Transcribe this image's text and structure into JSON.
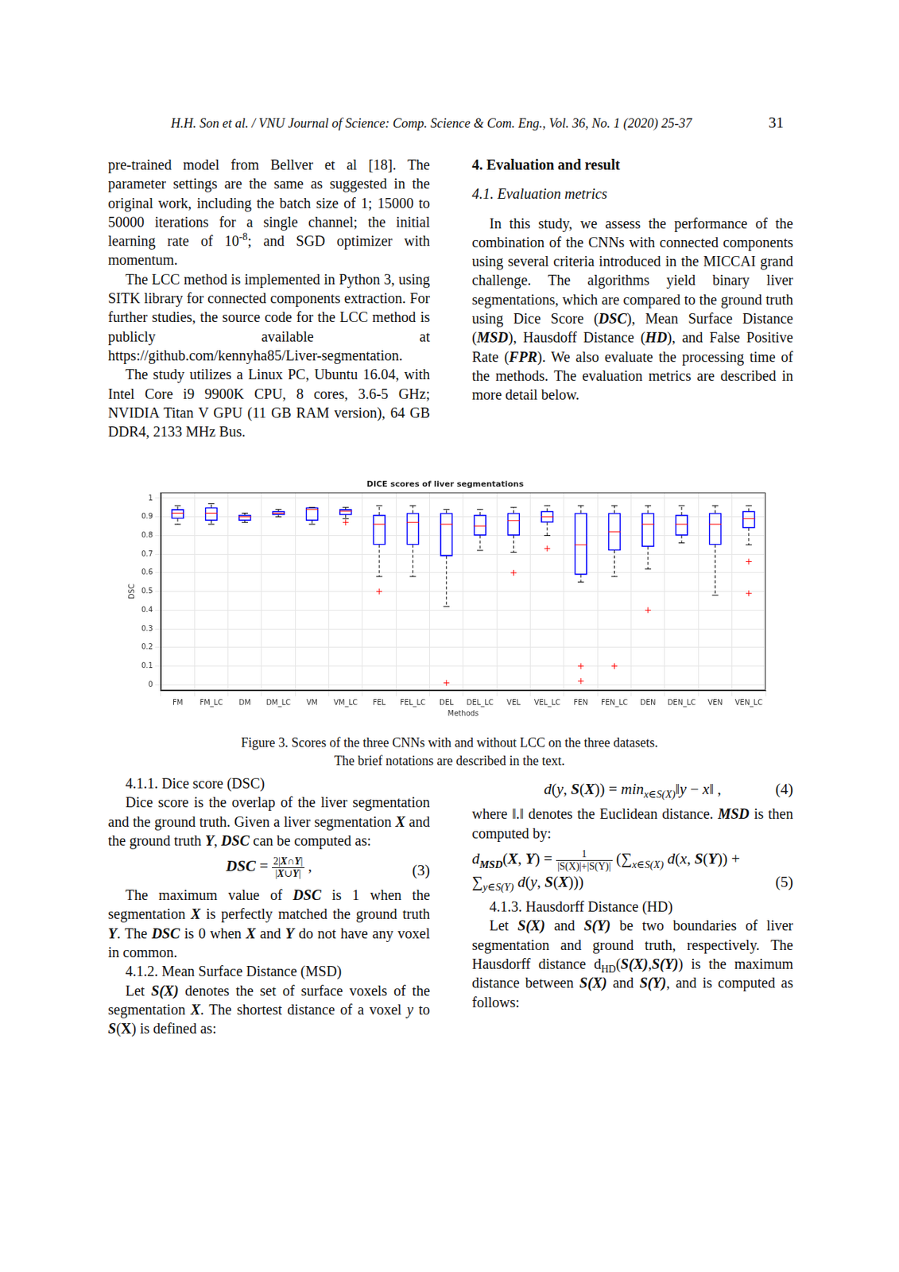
{
  "header": {
    "running_head": "H.H. Son et al. / VNU Journal of Science: Comp. Science & Com. Eng., Vol. 36, No. 1 (2020) 25-37",
    "page_number": "31"
  },
  "left_top": [
    {
      "cont": [
        {
          "t": "pre-trained model from Bellver et al [18]. The parameter settings are the same as suggested in the original work, including the batch size of 1; 15000 to 50000 iterations for a single channel; the initial learning rate of 10"
        },
        {
          "t": "-8",
          "sup": true
        },
        {
          "t": "; and SGD optimizer with momentum."
        }
      ]
    },
    {
      "p": [
        {
          "t": "The LCC method is implemented in Python 3, using SITK library for connected components extraction. For further studies, the source code for the LCC method is publicly available at https://github.com/kennyha85/Liver-segmentation."
        }
      ]
    },
    {
      "p": [
        {
          "t": "The study utilizes a Linux PC, Ubuntu 16.04, with Intel Core i9 9900K CPU, 8 cores, 3.6-5 GHz; NVIDIA Titan V GPU (11 GB RAM version), 64 GB DDR4, 2133 MHz Bus."
        }
      ]
    }
  ],
  "right_top": [
    {
      "h": [
        {
          "t": "4. Evaluation and result",
          "b": true
        }
      ]
    },
    {
      "h": [
        {
          "t": "4.1. Evaluation metrics",
          "i": true
        }
      ]
    },
    {
      "p": [
        {
          "t": "In this study, we assess the performance of the combination of the CNNs with connected components using several criteria introduced in the MICCAI grand challenge. The algorithms yield binary liver segmentations, which are compared to the ground truth using Dice Score ("
        },
        {
          "t": "DSC",
          "b": true,
          "i": true
        },
        {
          "t": "), Mean Surface Distance ("
        },
        {
          "t": "MSD",
          "b": true,
          "i": true
        },
        {
          "t": "), Hausdoff Distance ("
        },
        {
          "t": "HD",
          "b": true,
          "i": true
        },
        {
          "t": "), and False Positive Rate ("
        },
        {
          "t": "FPR",
          "b": true,
          "i": true
        },
        {
          "t": "). We also evaluate the processing time of the methods. The evaluation metrics are described in more detail below."
        }
      ]
    }
  ],
  "chart_data": {
    "type": "box",
    "title": "DICE scores of liver segmentations",
    "x_label": "Methods",
    "y_label": "DSC",
    "categories": [
      "FM",
      "FM_LC",
      "DM",
      "DM_LC",
      "VM",
      "VM_LC",
      "FEL",
      "FEL_LC",
      "DEL",
      "DEL_LC",
      "VEL",
      "VEL_LC",
      "FEN",
      "FEN_LC",
      "DEN",
      "DEN_LC",
      "VEN",
      "VEN_LC"
    ],
    "whisker_low": [
      0.86,
      0.86,
      0.87,
      0.9,
      0.86,
      0.89,
      0.58,
      0.58,
      0.42,
      0.72,
      0.71,
      0.8,
      0.55,
      0.58,
      0.62,
      0.76,
      0.48,
      0.75
    ],
    "q1": [
      0.89,
      0.88,
      0.88,
      0.91,
      0.88,
      0.91,
      0.75,
      0.75,
      0.69,
      0.8,
      0.8,
      0.87,
      0.59,
      0.72,
      0.74,
      0.8,
      0.75,
      0.84
    ],
    "median": [
      0.92,
      0.92,
      0.9,
      0.92,
      0.94,
      0.93,
      0.86,
      0.87,
      0.86,
      0.85,
      0.88,
      0.9,
      0.75,
      0.82,
      0.86,
      0.86,
      0.86,
      0.89
    ],
    "q3": [
      0.94,
      0.95,
      0.91,
      0.93,
      0.95,
      0.94,
      0.91,
      0.92,
      0.92,
      0.91,
      0.92,
      0.93,
      0.92,
      0.92,
      0.92,
      0.91,
      0.92,
      0.93
    ],
    "whisker_high": [
      0.96,
      0.97,
      0.92,
      0.94,
      0.95,
      0.95,
      0.96,
      0.96,
      0.94,
      0.94,
      0.95,
      0.96,
      0.96,
      0.96,
      0.96,
      0.96,
      0.96,
      0.96
    ],
    "outliers": [
      [],
      [],
      [],
      [],
      [],
      [
        0.87
      ],
      [
        0.5
      ],
      [],
      [
        0.01
      ],
      [],
      [
        0.6
      ],
      [
        0.73
      ],
      [
        0.1,
        0.02
      ],
      [
        0.1
      ],
      [
        0.4
      ],
      [],
      [],
      [
        0.66,
        0.49
      ]
    ],
    "color": "#0000ff",
    "ylim": [
      -0.03,
      1.03
    ],
    "yticks": [
      0,
      0.1,
      0.2,
      0.3,
      0.4,
      0.5,
      0.6,
      0.7,
      0.8,
      0.9,
      1
    ],
    "grid": true
  },
  "caption": [
    "Figure 3. Scores of the three CNNs with and without LCC on the three datasets.",
    "The brief notations are described in the text."
  ],
  "left_bottom": [
    {
      "p": [
        {
          "t": "4.1.1. Dice score (DSC)"
        }
      ]
    },
    {
      "p": [
        {
          "t": "Dice score is the overlap of the liver segmentation and the ground truth. Given a liver segmentation "
        },
        {
          "t": "X",
          "b": true,
          "i": true
        },
        {
          "t": " and the ground truth "
        },
        {
          "t": "Y",
          "b": true,
          "i": true
        },
        {
          "t": ", "
        },
        {
          "t": "DSC",
          "b": true,
          "i": true
        },
        {
          "t": " can be computed as:"
        }
      ]
    },
    {
      "eq": [
        [
          {
            "t": "DSC",
            "b": true,
            "i": true
          },
          {
            "t": " = "
          },
          {
            "num": [
              {
                "t": "2|"
              },
              {
                "t": "X",
                "b": true,
                "i": true
              },
              {
                "t": "∩"
              },
              {
                "t": "Y",
                "b": true,
                "i": true
              },
              {
                "t": "|"
              }
            ],
            "den": [
              {
                "t": "|"
              },
              {
                "t": "X",
                "b": true,
                "i": true
              },
              {
                "t": "∪"
              },
              {
                "t": "Y",
                "b": true,
                "i": true
              },
              {
                "t": "|"
              }
            ]
          },
          {
            "t": " ,"
          }
        ]
      ],
      "n": "(3)"
    },
    {
      "p": [
        {
          "t": "The maximum value of "
        },
        {
          "t": "DSC",
          "b": true,
          "i": true
        },
        {
          "t": " is 1 when the segmentation "
        },
        {
          "t": "X",
          "b": true,
          "i": true
        },
        {
          "t": " is perfectly matched the ground truth "
        },
        {
          "t": "Y",
          "b": true,
          "i": true
        },
        {
          "t": ". The "
        },
        {
          "t": "DSC",
          "b": true,
          "i": true
        },
        {
          "t": " is 0 when "
        },
        {
          "t": "X",
          "b": true,
          "i": true
        },
        {
          "t": " and "
        },
        {
          "t": "Y",
          "b": true,
          "i": true
        },
        {
          "t": " do not have any voxel in common."
        }
      ]
    },
    {
      "p": [
        {
          "t": "4.1.2. Mean Surface Distance (MSD)"
        }
      ]
    },
    {
      "p": [
        {
          "t": "Let "
        },
        {
          "t": "S(X)",
          "b": true,
          "i": true
        },
        {
          "t": " denotes the set of surface voxels of the segmentation "
        },
        {
          "t": "X",
          "b": true,
          "i": true
        },
        {
          "t": ". The shortest distance of a voxel "
        },
        {
          "t": "y",
          "i": true
        },
        {
          "t": " to "
        },
        {
          "t": "S",
          "b": true,
          "i": true
        },
        {
          "t": "("
        },
        {
          "t": "X",
          "b": true
        },
        {
          "t": ") is defined as:"
        }
      ]
    }
  ],
  "right_bottom": [
    {
      "eq": [
        [
          {
            "t": "d",
            "i": true
          },
          {
            "t": "("
          },
          {
            "t": "y",
            "i": true
          },
          {
            "t": ", "
          },
          {
            "t": "S",
            "b": true,
            "i": true
          },
          {
            "t": "("
          },
          {
            "t": "X",
            "b": true,
            "i": true
          },
          {
            "t": ")) = "
          },
          {
            "t": "min",
            "i": true
          },
          {
            "t": "x∈S(X)",
            "sub": true,
            "i": true
          },
          {
            "t": "‖"
          },
          {
            "t": "y",
            "i": true
          },
          {
            "t": " − "
          },
          {
            "t": "x",
            "i": true
          },
          {
            "t": "‖ ,"
          }
        ]
      ],
      "n": "(4)"
    },
    {
      "cont": [
        {
          "t": "where ‖.‖ denotes the Euclidean distance. "
        },
        {
          "t": "MSD",
          "b": true,
          "i": true
        },
        {
          "t": " is then computed by:"
        }
      ]
    },
    {
      "eq": [
        [
          {
            "t": "d",
            "i": true
          },
          {
            "t": "MSD",
            "sub": true,
            "b": true,
            "i": true
          },
          {
            "t": "("
          },
          {
            "t": "X",
            "b": true,
            "i": true
          },
          {
            "t": ", "
          },
          {
            "t": "Y",
            "b": true,
            "i": true
          },
          {
            "t": ") = "
          },
          {
            "num": [
              {
                "t": "1"
              }
            ],
            "den": [
              {
                "t": "|S(X)|+|S(Y)|"
              }
            ]
          },
          {
            "t": " (∑"
          },
          {
            "t": "x∈S(X)",
            "sub": true,
            "i": true
          },
          {
            "t": " "
          },
          {
            "t": "d",
            "i": true
          },
          {
            "t": "("
          },
          {
            "t": "x",
            "i": true
          },
          {
            "t": ", "
          },
          {
            "t": "S",
            "b": true,
            "i": true
          },
          {
            "t": "("
          },
          {
            "t": "Y",
            "b": true,
            "i": true
          },
          {
            "t": ")) +"
          }
        ],
        [
          {
            "t": "∑"
          },
          {
            "t": "y∈S(Y)",
            "sub": true,
            "i": true
          },
          {
            "t": " "
          },
          {
            "t": "d",
            "i": true
          },
          {
            "t": "("
          },
          {
            "t": "y",
            "i": true
          },
          {
            "t": ", "
          },
          {
            "t": "S",
            "b": true,
            "i": true
          },
          {
            "t": "("
          },
          {
            "t": "X",
            "b": true,
            "i": true
          },
          {
            "t": ")))"
          }
        ]
      ],
      "n": "(5)"
    },
    {
      "p": [
        {
          "t": "4.1.3. Hausdorff Distance (HD)"
        }
      ]
    },
    {
      "p": [
        {
          "t": "Let "
        },
        {
          "t": "S(X)",
          "b": true,
          "i": true
        },
        {
          "t": " and "
        },
        {
          "t": "S(Y)",
          "b": true,
          "i": true
        },
        {
          "t": " be two boundaries of liver segmentation and ground truth, respectively. The Hausdorff distance d"
        },
        {
          "t": "HD",
          "sub": true
        },
        {
          "t": "("
        },
        {
          "t": "S(X)",
          "b": true,
          "i": true
        },
        {
          "t": ","
        },
        {
          "t": "S(Y)",
          "b": true,
          "i": true
        },
        {
          "t": ") is the maximum distance between "
        },
        {
          "t": "S(X)",
          "b": true,
          "i": true
        },
        {
          "t": " and "
        },
        {
          "t": "S(Y)",
          "b": true,
          "i": true
        },
        {
          "t": ", and is computed as follows:"
        }
      ]
    }
  ]
}
